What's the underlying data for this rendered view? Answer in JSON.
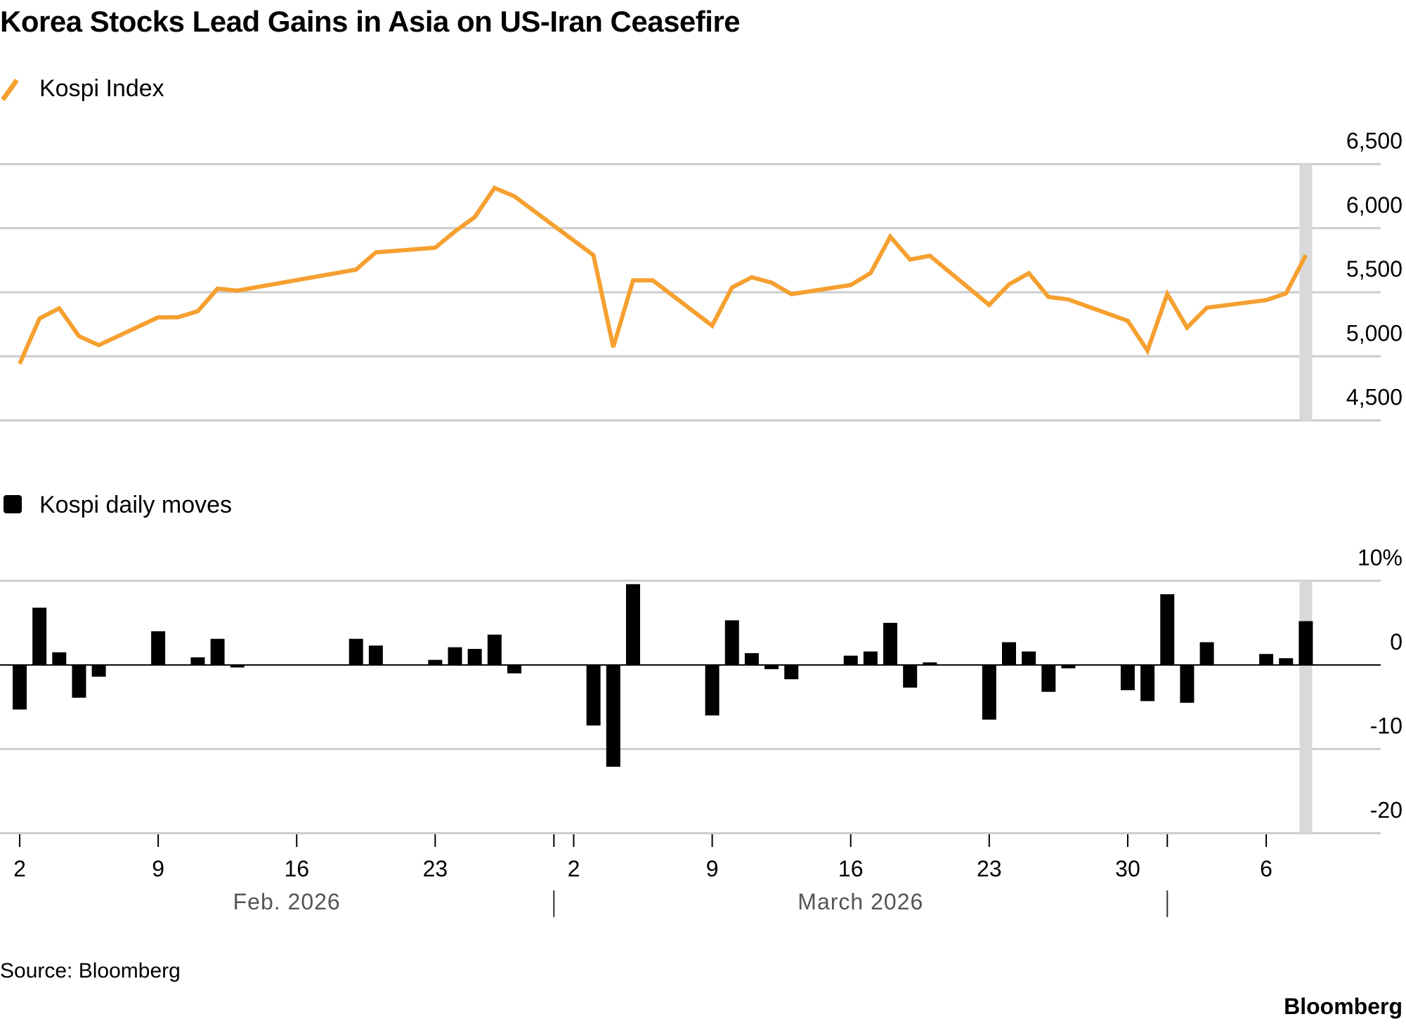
{
  "title": "Korea Stocks Lead Gains in Asia on US-Iran Ceasefire",
  "source": "Source: Bloomberg",
  "brand": "Bloomberg",
  "colors": {
    "line": "#F5A030",
    "bars": "#000000",
    "grid": "#CCCCCC",
    "highlight": "#D9D9D9"
  },
  "chart_data": [
    {
      "type": "line",
      "legend": "Kospi Index",
      "legend_icon": "line-swatch-icon",
      "ylim": [
        4500,
        6500
      ],
      "yticks": [
        "6,500",
        "6,000",
        "5,500",
        "5,000",
        "4,500"
      ],
      "ytick_values": [
        6500,
        6000,
        5500,
        5000,
        4500
      ],
      "grid": true,
      "highlight_date": "2026-04-08",
      "series": [
        {
          "name": "Kospi Index",
          "x": [
            "2026-02-02",
            "2026-02-03",
            "2026-02-04",
            "2026-02-05",
            "2026-02-06",
            "2026-02-09",
            "2026-02-10",
            "2026-02-11",
            "2026-02-12",
            "2026-02-13",
            "2026-02-19",
            "2026-02-20",
            "2026-02-23",
            "2026-02-24",
            "2026-02-25",
            "2026-02-26",
            "2026-02-27",
            "2026-03-03",
            "2026-03-04",
            "2026-03-05",
            "2026-03-06",
            "2026-03-09",
            "2026-03-10",
            "2026-03-11",
            "2026-03-12",
            "2026-03-13",
            "2026-03-16",
            "2026-03-17",
            "2026-03-18",
            "2026-03-19",
            "2026-03-20",
            "2026-03-23",
            "2026-03-24",
            "2026-03-25",
            "2026-03-26",
            "2026-03-27",
            "2026-03-30",
            "2026-03-31",
            "2026-04-01",
            "2026-04-02",
            "2026-04-03",
            "2026-04-06",
            "2026-04-07",
            "2026-04-08"
          ],
          "y": [
            4942,
            5295,
            5375,
            5156,
            5087,
            5304,
            5305,
            5351,
            5528,
            5513,
            5677,
            5811,
            5848,
            5975,
            6087,
            6314,
            6249,
            5789,
            5072,
            5593,
            5593,
            5239,
            5537,
            5617,
            5575,
            5485,
            5556,
            5649,
            5934,
            5755,
            5785,
            5401,
            5561,
            5649,
            5463,
            5444,
            5277,
            5044,
            5487,
            5224,
            5379,
            5439,
            5491,
            5789
          ]
        }
      ]
    },
    {
      "type": "bar",
      "legend": "Kospi daily moves",
      "legend_icon": "square-swatch-icon",
      "ylim": [
        -20,
        10
      ],
      "yticks": [
        "10%",
        "0",
        "-10",
        "-20"
      ],
      "ytick_values": [
        10,
        0,
        -10,
        -20
      ],
      "grid": true,
      "highlight_date": "2026-04-08",
      "series": [
        {
          "name": "Kospi daily moves",
          "x": [
            "2026-02-02",
            "2026-02-03",
            "2026-02-04",
            "2026-02-05",
            "2026-02-06",
            "2026-02-09",
            "2026-02-10",
            "2026-02-11",
            "2026-02-12",
            "2026-02-13",
            "2026-02-19",
            "2026-02-20",
            "2026-02-23",
            "2026-02-24",
            "2026-02-25",
            "2026-02-26",
            "2026-02-27",
            "2026-03-03",
            "2026-03-04",
            "2026-03-05",
            "2026-03-06",
            "2026-03-09",
            "2026-03-10",
            "2026-03-11",
            "2026-03-12",
            "2026-03-13",
            "2026-03-16",
            "2026-03-17",
            "2026-03-18",
            "2026-03-19",
            "2026-03-20",
            "2026-03-23",
            "2026-03-24",
            "2026-03-25",
            "2026-03-26",
            "2026-03-27",
            "2026-03-30",
            "2026-03-31",
            "2026-04-01",
            "2026-04-02",
            "2026-04-03",
            "2026-04-06",
            "2026-04-07",
            "2026-04-08"
          ],
          "y": [
            -5.3,
            6.8,
            1.5,
            -3.9,
            -1.4,
            4.0,
            0,
            0.9,
            3.1,
            -0.3,
            3.1,
            2.3,
            0.6,
            2.1,
            1.9,
            3.6,
            -1.0,
            -7.2,
            -12.1,
            9.6,
            0,
            -6.0,
            5.3,
            1.4,
            -0.5,
            -1.7,
            1.1,
            1.6,
            5.0,
            -2.7,
            0.3,
            -6.5,
            2.7,
            1.6,
            -3.2,
            -0.4,
            -3.0,
            -4.3,
            8.4,
            -4.5,
            2.7,
            1.3,
            0.8,
            5.2
          ]
        }
      ]
    }
  ],
  "x_axis": {
    "ticks": [
      {
        "date": "2026-02-02",
        "label": "2"
      },
      {
        "date": "2026-02-09",
        "label": "9"
      },
      {
        "date": "2026-02-16",
        "label": "16"
      },
      {
        "date": "2026-02-23",
        "label": "23"
      },
      {
        "date": "2026-03-02",
        "label": "2"
      },
      {
        "date": "2026-03-09",
        "label": "9"
      },
      {
        "date": "2026-03-16",
        "label": "16"
      },
      {
        "date": "2026-03-23",
        "label": "23"
      },
      {
        "date": "2026-03-30",
        "label": "30"
      },
      {
        "date": "2026-04-06",
        "label": "6"
      }
    ],
    "months": [
      {
        "label": "Feb. 2026",
        "start": "2026-02-01",
        "end": "2026-03-01"
      },
      {
        "label": "March 2026",
        "start": "2026-03-01",
        "end": "2026-04-01"
      }
    ],
    "range": [
      "2026-02-02",
      "2026-04-08"
    ]
  }
}
